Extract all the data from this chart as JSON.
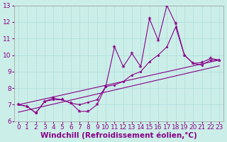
{
  "xlabel": "Windchill (Refroidissement éolien,°C)",
  "background_color": "#cceee8",
  "line_color": "#880088",
  "xlim": [
    -0.5,
    23.5
  ],
  "ylim": [
    6,
    13
  ],
  "xticks": [
    0,
    1,
    2,
    3,
    4,
    5,
    6,
    7,
    8,
    9,
    10,
    11,
    12,
    13,
    14,
    15,
    16,
    17,
    18,
    19,
    20,
    21,
    22,
    23
  ],
  "yticks": [
    6,
    7,
    8,
    9,
    10,
    11,
    12,
    13
  ],
  "grid_color": "#aadddd",
  "tick_fontsize": 6.5,
  "xlabel_fontsize": 7.5,
  "series_zigzag": {
    "x": [
      0,
      1,
      2,
      3,
      4,
      5,
      6,
      7,
      8,
      9,
      10,
      11,
      12,
      13,
      14,
      15,
      16,
      17,
      18,
      19,
      20,
      21,
      22,
      23
    ],
    "y": [
      7.0,
      6.9,
      6.5,
      7.2,
      7.4,
      7.3,
      7.1,
      6.6,
      6.6,
      7.0,
      8.1,
      10.5,
      9.3,
      10.1,
      9.3,
      12.2,
      10.9,
      13.0,
      11.9,
      10.0,
      9.5,
      9.55,
      9.8,
      9.7
    ]
  },
  "series_smooth": {
    "x": [
      0,
      1,
      2,
      3,
      4,
      5,
      6,
      7,
      8,
      9,
      10,
      11,
      12,
      13,
      14,
      15,
      16,
      17,
      18,
      19,
      20,
      21,
      22,
      23
    ],
    "y": [
      7.0,
      6.9,
      6.5,
      7.2,
      7.3,
      7.3,
      7.1,
      7.0,
      7.15,
      7.3,
      8.1,
      8.2,
      8.4,
      8.8,
      9.0,
      9.6,
      10.0,
      10.5,
      11.7,
      10.0,
      9.5,
      9.4,
      9.7,
      9.7
    ]
  },
  "trend1": {
    "x": [
      0,
      23
    ],
    "y": [
      6.55,
      9.35
    ]
  },
  "trend2": {
    "x": [
      0,
      23
    ],
    "y": [
      7.0,
      9.7
    ]
  }
}
